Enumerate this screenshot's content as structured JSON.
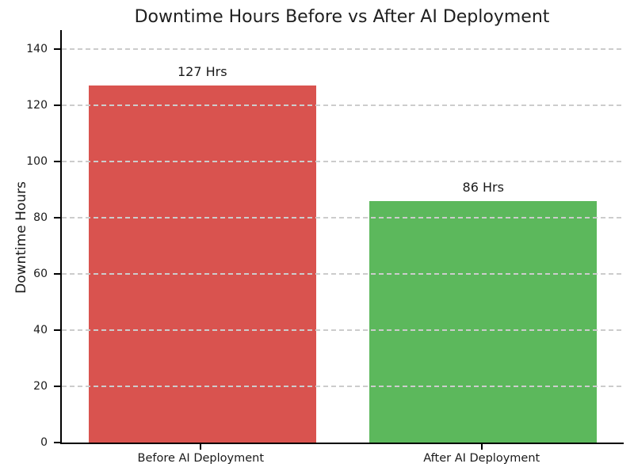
{
  "chart_data": {
    "type": "bar",
    "title": "Downtime Hours Before vs After AI Deployment",
    "xlabel": "",
    "ylabel": "Downtime Hours",
    "categories": [
      "Before AI Deployment",
      "After AI Deployment"
    ],
    "values": [
      127,
      86
    ],
    "bar_value_labels": [
      "127 Hrs",
      "86 Hrs"
    ],
    "bar_colors": [
      "#d9534f",
      "#5cb85c"
    ],
    "yticks": [
      0,
      20,
      40,
      60,
      80,
      100,
      120,
      140
    ],
    "ylim": [
      0,
      146.7
    ],
    "grid": {
      "horizontal": true,
      "style": "dashed",
      "color": "#cccccc",
      "drawn_above_bars": true
    },
    "legend": "none",
    "axis_color": "#000000",
    "text_color": "#1a1a1a",
    "background_color": "#ffffff"
  }
}
